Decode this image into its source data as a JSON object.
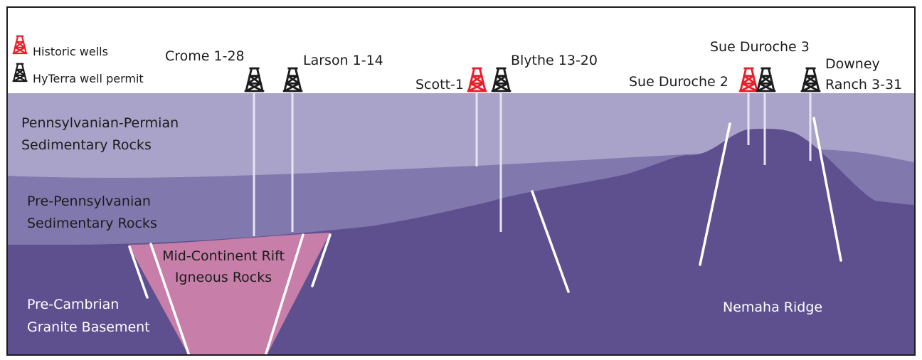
{
  "legend": {
    "historic": "Historic wells",
    "permit": "HyTerra well permit"
  },
  "layers": {
    "penn_permian": [
      "Pennsylvanian-Permian",
      "Sedimentary Rocks"
    ],
    "pre_penn": [
      "Pre-Pennsylvanian",
      "Sedimentary Rocks"
    ],
    "rift": [
      "Mid-Continent Rift",
      "Igneous Rocks"
    ],
    "precambrian": [
      "Pre-Cambrian",
      "Granite Basement"
    ],
    "nemaha": "Nemaha Ridge"
  },
  "wells": {
    "crome": "Crome 1-28",
    "larson": "Larson 1-14",
    "scott": "Scott-1",
    "blythe": "Blythe 13-20",
    "sue3": "Sue Duroche 3",
    "sue2": "Sue Duroche 2",
    "downey": [
      "Downey",
      "Ranch 3-31"
    ]
  },
  "colors": {
    "penn_permian": "#aaa3c9",
    "pre_penn": "#8179ad",
    "basement": "#5e508f",
    "rift": "#c77ea9",
    "historic_well": "#e8202a",
    "permit_well": "#1c1c1c"
  }
}
